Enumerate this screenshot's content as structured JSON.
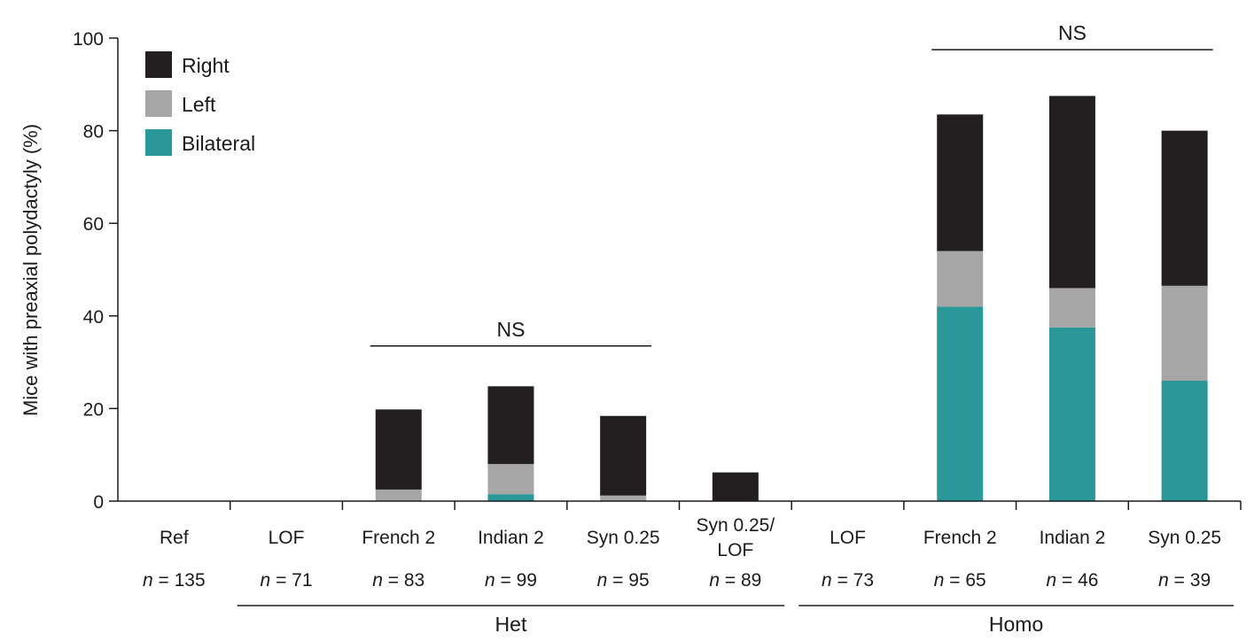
{
  "chart_data": {
    "type": "bar",
    "stacked": true,
    "ylabel": "Mice with preaxial polydactyly (%)",
    "ylim": [
      0,
      100
    ],
    "yticks": [
      "0",
      "20",
      "40",
      "60",
      "80",
      "100"
    ],
    "grid": false,
    "legend_position": "top-left",
    "categories": [
      {
        "name": "Ref",
        "n": "n = 135"
      },
      {
        "name": "LOF",
        "n": "n = 71"
      },
      {
        "name": "French 2",
        "n": "n = 83"
      },
      {
        "name": "Indian 2",
        "n": "n = 99"
      },
      {
        "name": "Syn 0.25",
        "n": "n = 95"
      },
      {
        "name": "Syn 0.25/ LOF",
        "line1": "Syn 0.25/",
        "line2": "LOF",
        "n": "n = 89"
      },
      {
        "name": "LOF",
        "n": "n = 73"
      },
      {
        "name": "French 2",
        "n": "n = 65"
      },
      {
        "name": "Indian 2",
        "n": "n = 46"
      },
      {
        "name": "Syn 0.25",
        "n": "n = 39"
      }
    ],
    "series": [
      {
        "name": "Bilateral",
        "color": "#2a9799",
        "values": [
          0,
          0,
          0,
          1.5,
          0,
          0,
          0,
          42,
          37.5,
          26
        ]
      },
      {
        "name": "Left",
        "color": "#a6a6a6",
        "values": [
          0,
          0,
          2.5,
          6.5,
          1.2,
          0,
          0,
          12,
          8.5,
          20.5
        ]
      },
      {
        "name": "Right",
        "color": "#231f20",
        "values": [
          0,
          0,
          17.3,
          16.8,
          17.2,
          6.2,
          0,
          29.5,
          41.5,
          33.5
        ]
      }
    ],
    "legend_order": [
      "Right",
      "Left",
      "Bilateral"
    ],
    "groups": [
      {
        "label": "Het",
        "from": 1,
        "to": 5
      },
      {
        "label": "Homo",
        "from": 6,
        "to": 9
      }
    ],
    "annotations": [
      {
        "text": "NS",
        "from": 2,
        "to": 4,
        "level": 33.5
      },
      {
        "text": "NS",
        "from": 7,
        "to": 9,
        "level": 97.5
      }
    ]
  }
}
